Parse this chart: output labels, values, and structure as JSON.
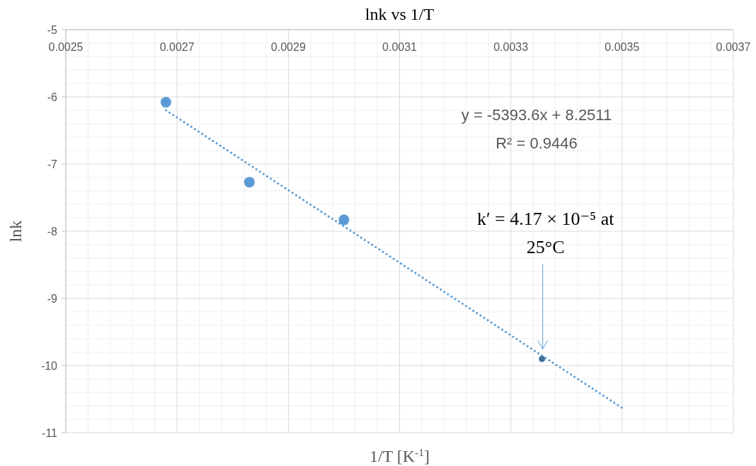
{
  "chart_data": {
    "type": "scatter",
    "title": "lnk vs 1/T",
    "xlabel": "1/T [K$^{-1}$]",
    "ylabel": "lnk",
    "xlim": [
      0.0025,
      0.0037
    ],
    "xticks": [
      0.0025,
      0.0027,
      0.0029,
      0.0031,
      0.0033,
      0.0035,
      0.0037
    ],
    "ylim": [
      -11,
      -5
    ],
    "yticks": [
      -11,
      -10,
      -9,
      -8,
      -7,
      -6,
      -5
    ],
    "grid": true,
    "series": [
      {
        "color": "#5b9bd5",
        "marker": "circle",
        "x": [
          0.00268,
          0.00283,
          0.003
        ],
        "values": [
          -6.08,
          -7.27,
          -7.83
        ]
      },
      {
        "color": "#41719c",
        "marker": "circle",
        "x": [
          0.003356
        ],
        "values": [
          -9.9
        ]
      },
      {
        "type": "line",
        "color": "#5b9bd5",
        "marker": "none",
        "line_style": "dotted",
        "x": [
          0.00268,
          0.0035
        ],
        "values": [
          -6.2,
          -10.63
        ]
      }
    ],
    "annotations": [
      "y = -5393.6x + 8.2511",
      "R² = 0.9446",
      "k′ = 4.17 × 10⁻⁵ at 25°C"
    ]
  }
}
